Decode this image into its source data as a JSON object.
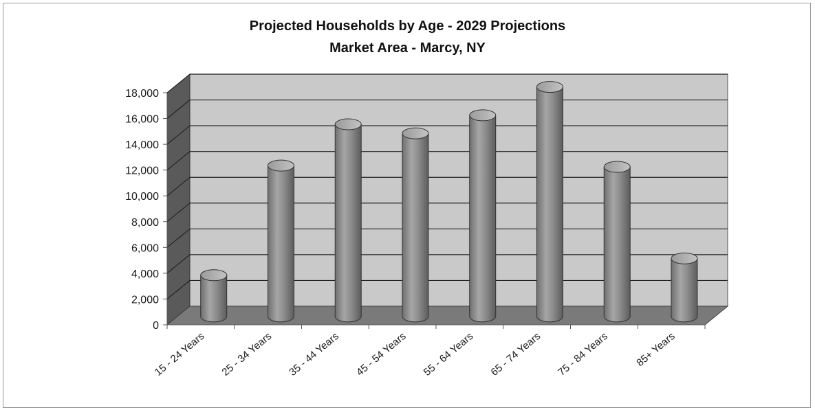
{
  "chart_data": {
    "type": "bar",
    "title": "Projected Households by Age - 2029 Projections",
    "subtitle": "Market Area - Marcy, NY",
    "xlabel": "",
    "ylabel": "",
    "categories": [
      "15 - 24 Years",
      "25 - 34 Years",
      "35 - 44 Years",
      "45 - 54 Years",
      "55 - 64 Years",
      "65 - 74 Years",
      "75 - 84 Years",
      "85+ Years"
    ],
    "values": [
      3200,
      11700,
      14900,
      14200,
      15600,
      17800,
      11600,
      4500
    ],
    "ylim": [
      0,
      18000
    ],
    "y_ticks": [
      "0",
      "2,000",
      "4,000",
      "6,000",
      "8,000",
      "10,000",
      "12,000",
      "14,000",
      "16,000",
      "18,000"
    ],
    "y_tick_values": [
      0,
      2000,
      4000,
      6000,
      8000,
      10000,
      12000,
      14000,
      16000,
      18000
    ],
    "grid": true,
    "legend": "none",
    "style": "3d-cylinder",
    "colors": {
      "bar": "#8c8c8c",
      "wall": "#c9c9c9",
      "side_wall": "#5a5a5a",
      "floor": "#7a7a7a",
      "gridline": "#222222"
    }
  }
}
